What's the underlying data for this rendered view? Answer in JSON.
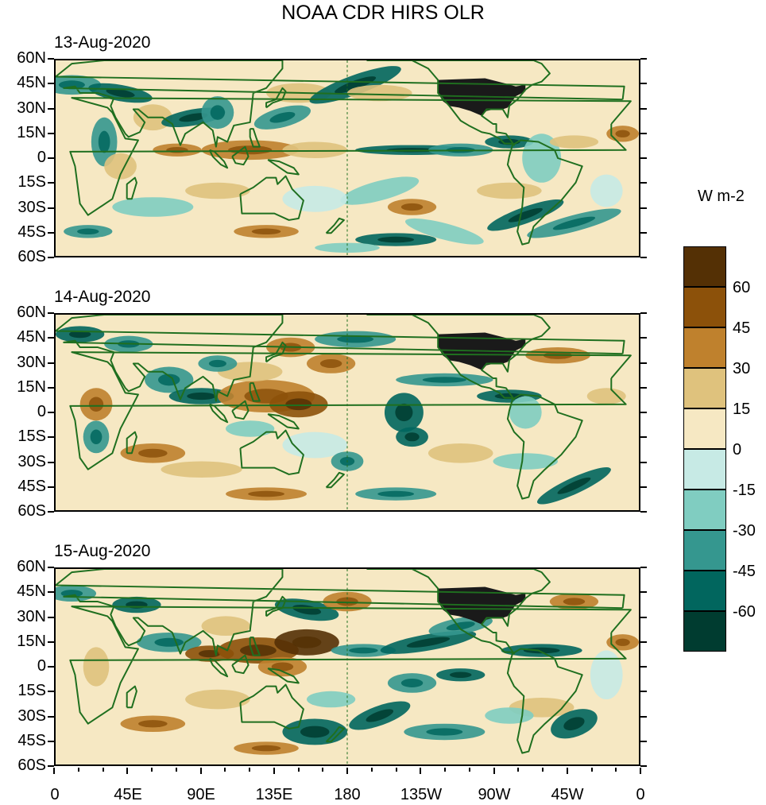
{
  "figure_title": "NOAA CDR HIRS OLR",
  "panels": [
    {
      "date": "13-Aug-2020"
    },
    {
      "date": "14-Aug-2020"
    },
    {
      "date": "15-Aug-2020"
    }
  ],
  "latitude_labels": [
    "60N",
    "45N",
    "30N",
    "15N",
    "0",
    "15S",
    "30S",
    "45S",
    "60S"
  ],
  "longitude_labels": [
    "0",
    "45E",
    "90E",
    "135E",
    "180",
    "135W",
    "90W",
    "45W",
    "0"
  ],
  "colorbar": {
    "units": "W m-2",
    "tick_labels": [
      "60",
      "45",
      "30",
      "15",
      "0",
      "-15",
      "-30",
      "-45",
      "-60"
    ],
    "colors": [
      "#543005",
      "#8c510a",
      "#bf812d",
      "#dfc27d",
      "#f6e8c3",
      "#c7eae5",
      "#80cdc1",
      "#35978f",
      "#01665e",
      "#003c30"
    ]
  },
  "style": {
    "coastline_color": "#1f6f1f",
    "land_fill_color": "#1a1a1a",
    "background_color": "#f6e8c3"
  }
}
